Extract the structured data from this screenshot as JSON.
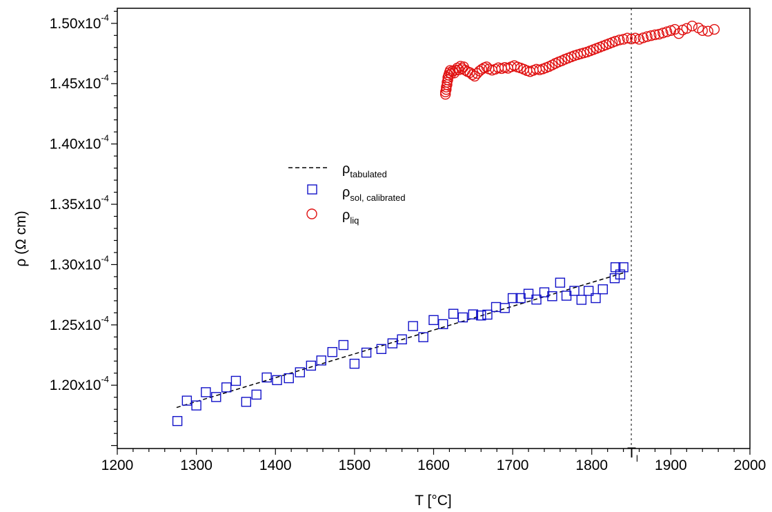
{
  "chart_data": {
    "type": "scatter",
    "title": "",
    "xlabel": "T [°C]",
    "ylabel": "ρ  (Ω cm)",
    "xlim": [
      1200,
      2000
    ],
    "ylim": [
      0.00011475,
      0.00015125
    ],
    "x_ticks": [
      1200,
      1300,
      1400,
      1500,
      1600,
      1700,
      1800,
      1900,
      2000
    ],
    "x_tick_labels": [
      "1200",
      "1300",
      "1400",
      "1500",
      "1600",
      "1700",
      "1800",
      "1900",
      "2000"
    ],
    "y_ticks": [
      0.00012,
      0.000125,
      0.00013,
      0.000135,
      0.00014,
      0.000145,
      0.00015
    ],
    "y_tick_labels": [
      {
        "mantissa": "1.20x10",
        "exp": "-4"
      },
      {
        "mantissa": "1.25x10",
        "exp": "-4"
      },
      {
        "mantissa": "1.30x10",
        "exp": "-4"
      },
      {
        "mantissa": "1.35x10",
        "exp": "-4"
      },
      {
        "mantissa": "1.40x10",
        "exp": "-4"
      },
      {
        "mantissa": "1.45x10",
        "exp": "-4"
      },
      {
        "mantissa": "1.50x10",
        "exp": "-4"
      }
    ],
    "grid": false,
    "legend_placement": "center-left",
    "annotation": {
      "x": 1850,
      "label": "T",
      "sub": "l"
    },
    "series": [
      {
        "name": "ρtabulated",
        "legend_main": "ρ",
        "legend_sub": "tabulated",
        "marker": "dashed-line",
        "color": "#000000",
        "points": [
          [
            1275,
            0.00011815
          ],
          [
            1842,
            0.00012935
          ]
        ]
      },
      {
        "name": "ρsol, calibrated",
        "legend_main": "ρ",
        "legend_sub": "sol, calibrated",
        "marker": "square",
        "color": "#1010c8",
        "points": [
          [
            1276,
            0.00011703
          ],
          [
            1288,
            0.00011872
          ],
          [
            1300,
            0.00011832
          ],
          [
            1312,
            0.00011942
          ],
          [
            1325,
            0.00011902
          ],
          [
            1338,
            0.00011982
          ],
          [
            1350,
            0.00012036
          ],
          [
            1363,
            0.00011862
          ],
          [
            1376,
            0.00011922
          ],
          [
            1389,
            0.00012064
          ],
          [
            1402,
            0.00012042
          ],
          [
            1417,
            0.00012058
          ],
          [
            1431,
            0.00012107
          ],
          [
            1445,
            0.00012162
          ],
          [
            1458,
            0.00012205
          ],
          [
            1472,
            0.00012275
          ],
          [
            1486,
            0.00012333
          ],
          [
            1500,
            0.00012178
          ],
          [
            1515,
            0.0001227
          ],
          [
            1534,
            0.000123
          ],
          [
            1548,
            0.00012347
          ],
          [
            1560,
            0.0001238
          ],
          [
            1574,
            0.0001249
          ],
          [
            1587,
            0.00012398
          ],
          [
            1600,
            0.0001254
          ],
          [
            1612,
            0.00012506
          ],
          [
            1625,
            0.00012592
          ],
          [
            1637,
            0.00012562
          ],
          [
            1650,
            0.00012587
          ],
          [
            1660,
            0.00012578
          ],
          [
            1668,
            0.00012585
          ],
          [
            1679,
            0.00012648
          ],
          [
            1690,
            0.0001264
          ],
          [
            1700,
            0.00012722
          ],
          [
            1710,
            0.00012722
          ],
          [
            1720,
            0.00012758
          ],
          [
            1730,
            0.0001271
          ],
          [
            1740,
            0.0001277
          ],
          [
            1750,
            0.00012738
          ],
          [
            1760,
            0.0001285
          ],
          [
            1768,
            0.00012742
          ],
          [
            1778,
            0.00012782
          ],
          [
            1787,
            0.00012708
          ],
          [
            1796,
            0.00012782
          ],
          [
            1805,
            0.00012722
          ],
          [
            1814,
            0.00012795
          ],
          [
            1829,
            0.00012887
          ],
          [
            1830,
            0.00012978
          ],
          [
            1836,
            0.00012918
          ],
          [
            1840,
            0.00012978
          ]
        ]
      },
      {
        "name": "ρliq",
        "legend_main": "ρ",
        "legend_sub": "liq",
        "marker": "circle",
        "color": "#e01010",
        "points": [
          [
            1615,
            0.00014412
          ],
          [
            1615,
            0.00014432
          ],
          [
            1616,
            0.00014452
          ],
          [
            1616,
            0.00014472
          ],
          [
            1617,
            0.00014492
          ],
          [
            1617,
            0.00014512
          ],
          [
            1618,
            0.00014532
          ],
          [
            1618,
            0.00014552
          ],
          [
            1619,
            0.00014572
          ],
          [
            1620,
            0.00014592
          ],
          [
            1621,
            0.0001461
          ],
          [
            1622,
            0.00014582
          ],
          [
            1624,
            0.00014605
          ],
          [
            1626,
            0.00014588
          ],
          [
            1628,
            0.00014612
          ],
          [
            1630,
            0.0001463
          ],
          [
            1632,
            0.00014615
          ],
          [
            1634,
            0.00014645
          ],
          [
            1636,
            0.00014625
          ],
          [
            1638,
            0.0001464
          ],
          [
            1640,
            0.00014612
          ],
          [
            1643,
            0.000146
          ],
          [
            1646,
            0.00014592
          ],
          [
            1649,
            0.00014575
          ],
          [
            1652,
            0.00014562
          ],
          [
            1655,
            0.00014585
          ],
          [
            1658,
            0.00014605
          ],
          [
            1661,
            0.0001462
          ],
          [
            1664,
            0.00014632
          ],
          [
            1667,
            0.0001464
          ],
          [
            1670,
            0.00014622
          ],
          [
            1674,
            0.00014612
          ],
          [
            1678,
            0.0001462
          ],
          [
            1682,
            0.00014632
          ],
          [
            1686,
            0.00014625
          ],
          [
            1690,
            0.00014635
          ],
          [
            1694,
            0.00014628
          ],
          [
            1698,
            0.0001464
          ],
          [
            1702,
            0.0001465
          ],
          [
            1706,
            0.00014638
          ],
          [
            1710,
            0.0001463
          ],
          [
            1714,
            0.0001462
          ],
          [
            1718,
            0.00014608
          ],
          [
            1722,
            0.000146
          ],
          [
            1726,
            0.0001461
          ],
          [
            1730,
            0.0001462
          ],
          [
            1734,
            0.00014615
          ],
          [
            1738,
            0.00014622
          ],
          [
            1742,
            0.00014632
          ],
          [
            1746,
            0.00014642
          ],
          [
            1750,
            0.00014655
          ],
          [
            1754,
            0.00014668
          ],
          [
            1758,
            0.0001468
          ],
          [
            1762,
            0.0001469
          ],
          [
            1766,
            0.00014702
          ],
          [
            1770,
            0.00014712
          ],
          [
            1774,
            0.00014722
          ],
          [
            1778,
            0.00014732
          ],
          [
            1782,
            0.0001474
          ],
          [
            1786,
            0.00014748
          ],
          [
            1790,
            0.00014755
          ],
          [
            1794,
            0.00014762
          ],
          [
            1798,
            0.00014772
          ],
          [
            1802,
            0.00014782
          ],
          [
            1806,
            0.00014792
          ],
          [
            1810,
            0.00014802
          ],
          [
            1814,
            0.00014812
          ],
          [
            1818,
            0.00014822
          ],
          [
            1822,
            0.00014832
          ],
          [
            1826,
            0.00014842
          ],
          [
            1830,
            0.00014852
          ],
          [
            1835,
            0.00014862
          ],
          [
            1840,
            0.00014868
          ],
          [
            1845,
            0.00014878
          ],
          [
            1850,
            0.0001487
          ],
          [
            1855,
            0.00014878
          ],
          [
            1860,
            0.00014868
          ],
          [
            1865,
            0.0001488
          ],
          [
            1870,
            0.0001489
          ],
          [
            1875,
            0.00014898
          ],
          [
            1880,
            0.00014905
          ],
          [
            1885,
            0.0001491
          ],
          [
            1890,
            0.0001492
          ],
          [
            1895,
            0.0001493
          ],
          [
            1900,
            0.0001494
          ],
          [
            1905,
            0.0001495
          ],
          [
            1910,
            0.00014915
          ],
          [
            1915,
            0.00014945
          ],
          [
            1920,
            0.00014958
          ],
          [
            1927,
            0.00014978
          ],
          [
            1935,
            0.00014962
          ],
          [
            1940,
            0.0001494
          ],
          [
            1947,
            0.00014935
          ],
          [
            1955,
            0.0001495
          ]
        ]
      }
    ]
  }
}
